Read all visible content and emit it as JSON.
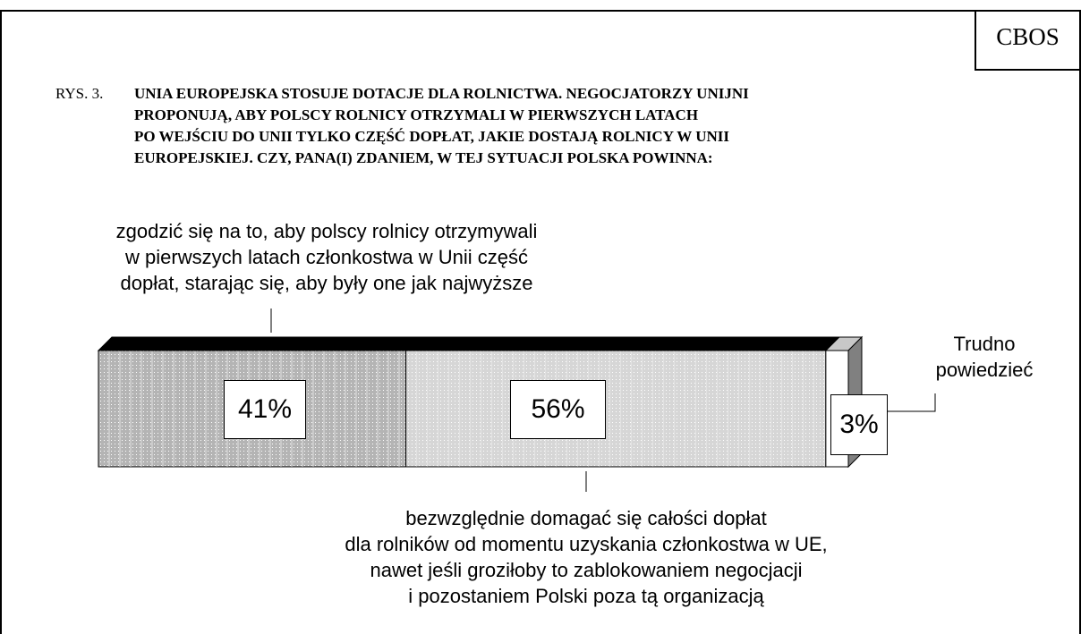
{
  "chart_data": {
    "type": "stacked-bar",
    "source": "CBOS",
    "figure_label": "RYS. 3.",
    "title": "UNIA EUROPEJSKA STOSUJE DOTACJE DLA ROLNICTWA. NEGOCJATORZY UNIJNI\nPROPONUJĄ, ABY POLSCY ROLNICY OTRZYMALI W PIERWSZYCH LATACH\nPO WEJŚCIU DO UNII TYLKO CZĘŚĆ DOPŁAT, JAKIE DOSTAJĄ ROLNICY W UNII\nEUROPEJSKIEJ. CZY, PANA(I) ZDANIEM, W TEJ SYTUACJI POLSKA POWINNA:",
    "series": [
      {
        "name": "zgodzić się na to, aby polscy rolnicy otrzymywali\nw pierwszych latach członkostwa w Unii część\ndopłat, starając się, aby były one jak najwyższe",
        "color": "#b4b4b4",
        "values": [
          41
        ],
        "value_labels": [
          "41%"
        ]
      },
      {
        "name": "bezwzględnie domagać się całości dopłat\ndla rolników od momentu uzyskania członkostwa w UE,\nnawet jeśli groziłoby to zablokowaniem negocjacji\ni pozostaniem Polski poza tą organizacją",
        "color": "#d6d6d6",
        "values": [
          56
        ],
        "value_labels": [
          "56%"
        ]
      },
      {
        "name": "Trudno\npowiedzieć",
        "color": "#ffffff",
        "values": [
          3
        ],
        "value_labels": [
          "3%"
        ]
      }
    ],
    "xlim": [
      0,
      100
    ]
  }
}
